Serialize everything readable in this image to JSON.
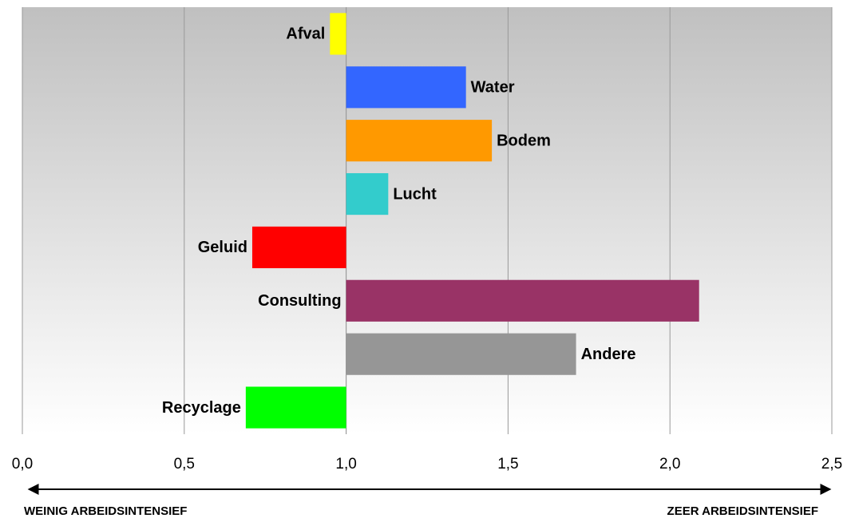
{
  "chart_data": {
    "type": "bar",
    "orientation": "horizontal",
    "categories": [
      "Afval",
      "Water",
      "Bodem",
      "Lucht",
      "Geluid",
      "Consulting",
      "Andere",
      "Recyclage"
    ],
    "values": [
      0.95,
      1.37,
      1.45,
      1.13,
      0.71,
      2.09,
      1.71,
      0.69
    ],
    "colors": [
      "#ffff00",
      "#3366ff",
      "#ff9900",
      "#33cccc",
      "#ff0000",
      "#993366",
      "#969696",
      "#00ff00"
    ],
    "label_positions": [
      "left",
      "right",
      "right",
      "right",
      "left",
      "left",
      "right",
      "left"
    ],
    "base": 1,
    "xlim": [
      0,
      2.5
    ],
    "xticks": [
      {
        "value": 0,
        "label": "0,0"
      },
      {
        "value": 0.5,
        "label": "0,5"
      },
      {
        "value": 1,
        "label": "1,0"
      },
      {
        "value": 1.5,
        "label": "1,5"
      },
      {
        "value": 2,
        "label": "2,0"
      },
      {
        "value": 2.5,
        "label": "2,5"
      }
    ],
    "grid": true,
    "left_label": "WEINIG ARBEIDSINTENSIEF",
    "right_label": "ZEER ARBEIDSINTENSIEF"
  }
}
